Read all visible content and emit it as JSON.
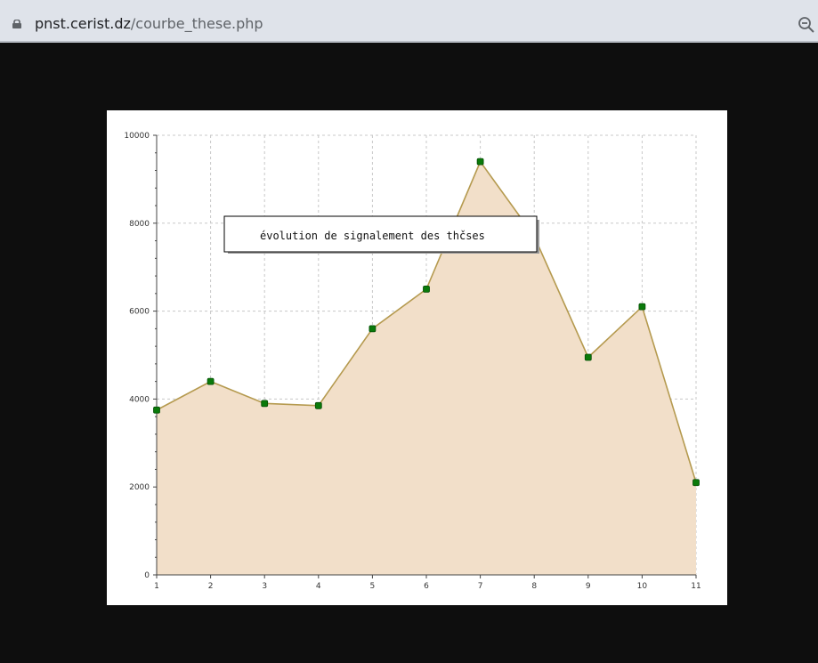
{
  "browser": {
    "url_domain": "pnst.cerist.dz",
    "url_path": "/courbe_these.php",
    "lock_icon": "lock-icon",
    "zoom_icon": "zoom-out-icon"
  },
  "chart_data": {
    "type": "area",
    "title": "",
    "xlabel": "",
    "ylabel": "",
    "legend": "évolution de signalement des thčses",
    "x": [
      1,
      2,
      3,
      4,
      5,
      6,
      7,
      8,
      9,
      10,
      11
    ],
    "x_tick_labels": [
      "1",
      "2",
      "3",
      "4",
      "5",
      "6",
      "7",
      "8",
      "9",
      "10",
      "11"
    ],
    "y_tick_labels": [
      "0",
      "2000",
      "4000",
      "6000",
      "8000",
      "10000"
    ],
    "y_ticks": [
      0,
      2000,
      4000,
      6000,
      8000,
      10000
    ],
    "series": [
      {
        "values": [
          3750,
          4400,
          3900,
          3850,
          5600,
          6500,
          9400,
          7700,
          4950,
          6100,
          2100
        ]
      }
    ],
    "xlim": [
      1,
      11
    ],
    "ylim": [
      0,
      10000
    ],
    "grid": true,
    "legend_position": "top-left",
    "colors": {
      "fill": "#f2dfc9",
      "line": "#b59a4f",
      "marker": "#0a7a0a",
      "grid": "#c8c8c8"
    }
  }
}
